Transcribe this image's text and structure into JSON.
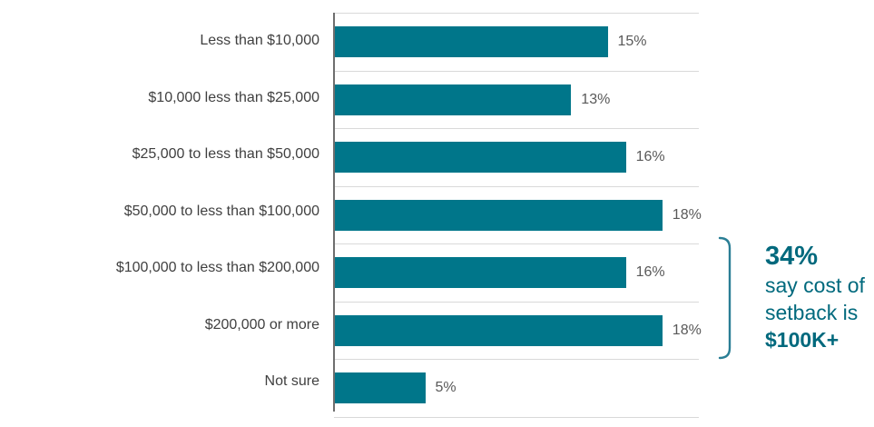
{
  "chart_data": {
    "type": "bar",
    "orientation": "horizontal",
    "title": "",
    "categories": [
      "Less than $10,000",
      "$10,000 less than $25,000",
      "$25,000 to less than $50,000",
      "$50,000 to less than $100,000",
      "$100,000 to less than $200,000",
      "$200,000 or more",
      "Not sure"
    ],
    "values": [
      15,
      13,
      16,
      18,
      16,
      18,
      5
    ],
    "value_labels": [
      "15%",
      "13%",
      "16%",
      "18%",
      "16%",
      "18%",
      "5%"
    ],
    "xlim": [
      0,
      20
    ],
    "grid": true,
    "legend": "none",
    "bar_color": "#00768a",
    "annotation": {
      "headline": "34%",
      "body_line1": "say cost of",
      "body_line2": "setback is",
      "body_line3": "$100K+",
      "bracket_covers": [
        "$100,000 to less than $200,000",
        "$200,000 or more"
      ]
    }
  },
  "colors": {
    "bar": "#00768a",
    "annotation_text": "#00697d",
    "bracket": "#2a7e95",
    "category_label": "#404040",
    "value_label": "#595959",
    "gridline": "#d9d9d9",
    "axis": "#6e6e6e"
  }
}
